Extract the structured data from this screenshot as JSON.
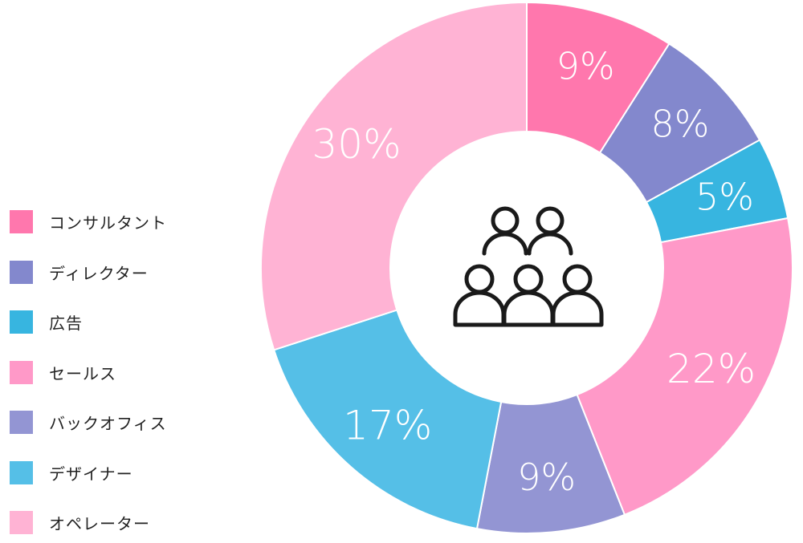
{
  "chart_data": {
    "type": "pie",
    "donut": true,
    "categories": [
      "コンサルタント",
      "ディレクター",
      "広告",
      "セールス",
      "バックオフィス",
      "デザイナー",
      "オペレーター"
    ],
    "values": [
      9,
      8,
      5,
      22,
      9,
      17,
      30
    ],
    "value_labels": [
      "9%",
      "8%",
      "5%",
      "22%",
      "9%",
      "17%",
      "30%"
    ],
    "colors": [
      "#ff77ad",
      "#8388cd",
      "#37b5e0",
      "#ff99c8",
      "#9395d3",
      "#55bfe7",
      "#ffb3d4"
    ],
    "start_angle_deg": 0,
    "direction": "clockwise",
    "legend_position": "left",
    "center_icon": "people-group-icon"
  }
}
